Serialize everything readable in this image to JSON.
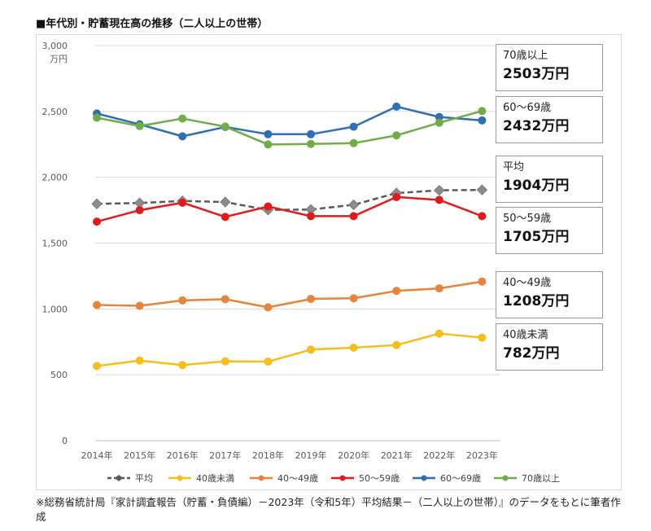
{
  "heading": "■年代別・貯蓄現在高の推移（二人以上の世帯）",
  "source_note": "※総務省統計局『家計調査報告（貯蓄・負債編）－2023年（令和5年）平均結果－（二人以上の世帯）』のデータをもとに筆者作成",
  "callouts": [
    {
      "name": "70歳以上",
      "value": "2503万円"
    },
    {
      "name": "60～69歳",
      "value": "2432万円"
    },
    {
      "name": "平均",
      "value": "1904万円"
    },
    {
      "name": "50～59歳",
      "value": "1705万円"
    },
    {
      "name": "40～49歳",
      "value": "1208万円"
    },
    {
      "name": "40歳未満",
      "value": "782万円"
    }
  ],
  "chart_data": {
    "type": "line",
    "title": "",
    "xlabel": "",
    "ylabel": "万円",
    "ylim": [
      0,
      3000
    ],
    "yticks": [
      0,
      500,
      1000,
      1500,
      2000,
      2500,
      3000
    ],
    "ytick_labels": [
      "0",
      "500",
      "1,000",
      "1,500",
      "2,000",
      "2,500",
      "3,000"
    ],
    "grid": true,
    "legend_position": "bottom",
    "categories": [
      "2014年",
      "2015年",
      "2016年",
      "2017年",
      "2018年",
      "2019年",
      "2020年",
      "2021年",
      "2022年",
      "2023年"
    ],
    "series": [
      {
        "name": "平均",
        "color": "#595959",
        "style": "dashed",
        "marker": "diamond",
        "values": [
          1798,
          1805,
          1820,
          1812,
          1752,
          1755,
          1791,
          1880,
          1901,
          1904
        ]
      },
      {
        "name": "40歳未満",
        "color": "#f5be1b",
        "style": "solid",
        "marker": "circle",
        "values": [
          567,
          608,
          574,
          602,
          600,
          691,
          706,
          725,
          813,
          782
        ]
      },
      {
        "name": "40～49歳",
        "color": "#e8833a",
        "style": "solid",
        "marker": "circle",
        "values": [
          1030,
          1024,
          1065,
          1074,
          1012,
          1076,
          1081,
          1137,
          1156,
          1208
        ]
      },
      {
        "name": "50～59歳",
        "color": "#e21a1a",
        "style": "solid",
        "marker": "circle",
        "values": [
          1663,
          1750,
          1807,
          1699,
          1778,
          1705,
          1705,
          1850,
          1828,
          1705
        ]
      },
      {
        "name": "60～69歳",
        "color": "#2e6eb5",
        "style": "solid",
        "marker": "circle",
        "values": [
          2484,
          2402,
          2311,
          2382,
          2327,
          2327,
          2384,
          2537,
          2458,
          2432
        ]
      },
      {
        "name": "70歳以上",
        "color": "#71ad47",
        "style": "solid",
        "marker": "circle",
        "values": [
          2452,
          2389,
          2446,
          2385,
          2249,
          2253,
          2259,
          2318,
          2414,
          2503
        ]
      }
    ]
  }
}
